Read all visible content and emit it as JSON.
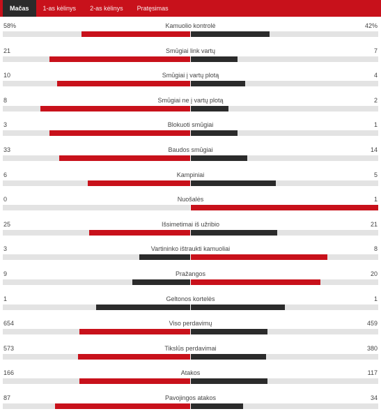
{
  "colors": {
    "header_bg": "#c8111b",
    "active_tab_bg": "#2b2b2b",
    "bar_red": "#c8111b",
    "bar_dark": "#2b2b2b",
    "track": "#e3e3e3"
  },
  "tabs": [
    {
      "label": "Mačas",
      "active": true
    },
    {
      "label": "1-as kėlinys",
      "active": false
    },
    {
      "label": "2-as kėlinys",
      "active": false
    },
    {
      "label": "Pratęsimas",
      "active": false
    }
  ],
  "stats": [
    {
      "label": "Kamuolio kontrolė",
      "left": "58%",
      "right": "42%",
      "left_share": 0.58,
      "right_share": 0.42,
      "left_color": "red",
      "right_color": "dark"
    },
    {
      "label": "Smūgiai link vartų",
      "left": "21",
      "right": "7",
      "left_share": 0.75,
      "right_share": 0.25,
      "left_color": "red",
      "right_color": "dark"
    },
    {
      "label": "Smūgiai į vartų plotą",
      "left": "10",
      "right": "4",
      "left_share": 0.71,
      "right_share": 0.29,
      "left_color": "red",
      "right_color": "dark"
    },
    {
      "label": "Smūgiai ne į vartų plotą",
      "left": "8",
      "right": "2",
      "left_share": 0.8,
      "right_share": 0.2,
      "left_color": "red",
      "right_color": "dark"
    },
    {
      "label": "Blokuoti smūgiai",
      "left": "3",
      "right": "1",
      "left_share": 0.75,
      "right_share": 0.25,
      "left_color": "red",
      "right_color": "dark"
    },
    {
      "label": "Baudos smūgiai",
      "left": "33",
      "right": "14",
      "left_share": 0.7,
      "right_share": 0.3,
      "left_color": "red",
      "right_color": "dark"
    },
    {
      "label": "Kampiniai",
      "left": "6",
      "right": "5",
      "left_share": 0.545,
      "right_share": 0.455,
      "left_color": "red",
      "right_color": "dark"
    },
    {
      "label": "Nuošalės",
      "left": "0",
      "right": "1",
      "left_share": 0.0,
      "right_share": 1.0,
      "left_color": "dark",
      "right_color": "red"
    },
    {
      "label": "Išsimetimai iš užribio",
      "left": "25",
      "right": "21",
      "left_share": 0.54,
      "right_share": 0.46,
      "left_color": "red",
      "right_color": "dark"
    },
    {
      "label": "Vartininko ištraukti kamuoliai",
      "left": "3",
      "right": "8",
      "left_share": 0.27,
      "right_share": 0.73,
      "left_color": "dark",
      "right_color": "red"
    },
    {
      "label": "Pražangos",
      "left": "9",
      "right": "20",
      "left_share": 0.31,
      "right_share": 0.69,
      "left_color": "dark",
      "right_color": "red"
    },
    {
      "label": "Geltonos kortelės",
      "left": "1",
      "right": "1",
      "left_share": 0.5,
      "right_share": 0.5,
      "left_color": "dark",
      "right_color": "dark"
    },
    {
      "label": "Viso perdavimų",
      "left": "654",
      "right": "459",
      "left_share": 0.59,
      "right_share": 0.41,
      "left_color": "red",
      "right_color": "dark"
    },
    {
      "label": "Tikslūs perdavimai",
      "left": "573",
      "right": "380",
      "left_share": 0.6,
      "right_share": 0.4,
      "left_color": "red",
      "right_color": "dark"
    },
    {
      "label": "Atakos",
      "left": "166",
      "right": "117",
      "left_share": 0.59,
      "right_share": 0.41,
      "left_color": "red",
      "right_color": "dark"
    },
    {
      "label": "Pavojingos atakos",
      "left": "87",
      "right": "34",
      "left_share": 0.72,
      "right_share": 0.28,
      "left_color": "red",
      "right_color": "dark"
    }
  ]
}
